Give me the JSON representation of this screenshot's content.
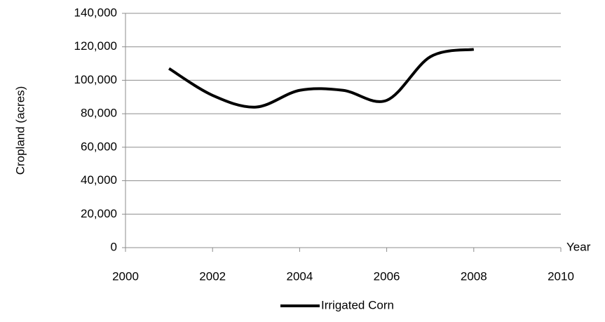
{
  "chart_data": {
    "type": "line",
    "x_label": "Year",
    "y_label": "Cropland (acres)",
    "x": [
      2001,
      2002,
      2003,
      2004,
      2005,
      2006,
      2007,
      2008
    ],
    "series": [
      {
        "name": "Irrigated Corn",
        "color": "#000000",
        "values": [
          107000,
          91000,
          84000,
          94000,
          94000,
          88000,
          114000,
          118500
        ]
      }
    ],
    "xlim": [
      2000,
      2010
    ],
    "xticks": [
      2000,
      2002,
      2004,
      2006,
      2008,
      2010
    ],
    "ylim": [
      0,
      140000
    ],
    "yticks": [
      0,
      {
        "value": 20000,
        "label": "20,000"
      },
      {
        "value": 40000,
        "label": "40,000"
      },
      {
        "value": 60000,
        "label": "60,000"
      },
      {
        "value": 80000,
        "label": "80,000"
      },
      {
        "value": 100000,
        "label": "100,000"
      },
      {
        "value": 120000,
        "label": "120,000"
      },
      {
        "value": 140000,
        "label": "140,000"
      }
    ],
    "grid": true,
    "smooth": true,
    "legend": "bottom"
  }
}
